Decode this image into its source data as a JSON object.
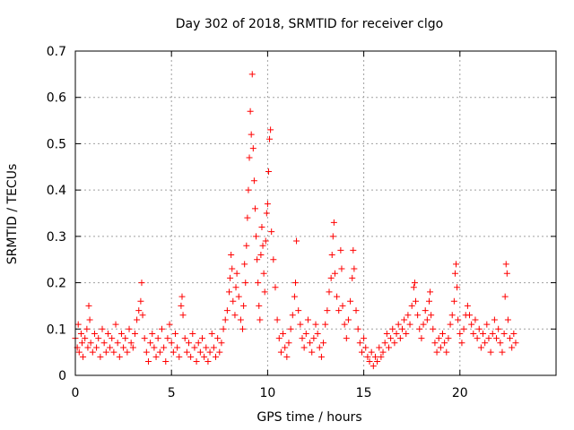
{
  "chart_data": {
    "type": "scatter",
    "title": "Day 302 of 2018, SRMTID for receiver clgo",
    "xlabel": "GPS time / hours",
    "ylabel": "SRMTID / TECUs",
    "xlim": [
      0,
      25
    ],
    "ylim": [
      0,
      0.7
    ],
    "x_ticks": [
      0,
      5,
      10,
      15,
      20
    ],
    "x_tick_labels": [
      "0",
      "5",
      "10",
      "15",
      "20"
    ],
    "y_ticks": [
      0,
      0.1,
      0.2,
      0.3,
      0.4,
      0.5,
      0.6,
      0.7
    ],
    "y_tick_labels": [
      "0",
      "0.1",
      "0.2",
      "0.3",
      "0.4",
      "0.5",
      "0.6",
      "0.7"
    ],
    "grid": true,
    "marker": "plus",
    "color": "#ff0000",
    "series": [
      {
        "name": "SRMTID",
        "points": [
          [
            0.0,
            0.08
          ],
          [
            0.1,
            0.06
          ],
          [
            0.15,
            0.11
          ],
          [
            0.2,
            0.05
          ],
          [
            0.3,
            0.09
          ],
          [
            0.35,
            0.07
          ],
          [
            0.4,
            0.04
          ],
          [
            0.5,
            0.08
          ],
          [
            0.6,
            0.1
          ],
          [
            0.65,
            0.06
          ],
          [
            0.7,
            0.15
          ],
          [
            0.75,
            0.12
          ],
          [
            0.8,
            0.07
          ],
          [
            0.9,
            0.05
          ],
          [
            1.0,
            0.09
          ],
          [
            1.1,
            0.06
          ],
          [
            1.2,
            0.08
          ],
          [
            1.3,
            0.04
          ],
          [
            1.4,
            0.1
          ],
          [
            1.5,
            0.07
          ],
          [
            1.6,
            0.05
          ],
          [
            1.7,
            0.09
          ],
          [
            1.8,
            0.06
          ],
          [
            1.9,
            0.08
          ],
          [
            2.0,
            0.05
          ],
          [
            2.1,
            0.11
          ],
          [
            2.2,
            0.07
          ],
          [
            2.3,
            0.04
          ],
          [
            2.4,
            0.09
          ],
          [
            2.5,
            0.06
          ],
          [
            2.6,
            0.08
          ],
          [
            2.7,
            0.05
          ],
          [
            2.8,
            0.1
          ],
          [
            2.9,
            0.07
          ],
          [
            3.0,
            0.06
          ],
          [
            3.1,
            0.09
          ],
          [
            3.2,
            0.12
          ],
          [
            3.3,
            0.14
          ],
          [
            3.4,
            0.16
          ],
          [
            3.45,
            0.2
          ],
          [
            3.5,
            0.13
          ],
          [
            3.6,
            0.08
          ],
          [
            3.7,
            0.05
          ],
          [
            3.8,
            0.03
          ],
          [
            3.9,
            0.07
          ],
          [
            4.0,
            0.09
          ],
          [
            4.1,
            0.06
          ],
          [
            4.2,
            0.04
          ],
          [
            4.3,
            0.08
          ],
          [
            4.4,
            0.05
          ],
          [
            4.5,
            0.1
          ],
          [
            4.6,
            0.06
          ],
          [
            4.7,
            0.03
          ],
          [
            4.8,
            0.08
          ],
          [
            4.9,
            0.11
          ],
          [
            5.0,
            0.07
          ],
          [
            5.1,
            0.05
          ],
          [
            5.2,
            0.09
          ],
          [
            5.3,
            0.06
          ],
          [
            5.4,
            0.04
          ],
          [
            5.5,
            0.15
          ],
          [
            5.55,
            0.17
          ],
          [
            5.6,
            0.13
          ],
          [
            5.7,
            0.08
          ],
          [
            5.8,
            0.05
          ],
          [
            5.9,
            0.07
          ],
          [
            6.0,
            0.04
          ],
          [
            6.1,
            0.09
          ],
          [
            6.2,
            0.06
          ],
          [
            6.3,
            0.03
          ],
          [
            6.4,
            0.07
          ],
          [
            6.5,
            0.05
          ],
          [
            6.6,
            0.08
          ],
          [
            6.7,
            0.04
          ],
          [
            6.8,
            0.06
          ],
          [
            6.9,
            0.03
          ],
          [
            7.0,
            0.05
          ],
          [
            7.1,
            0.09
          ],
          [
            7.2,
            0.06
          ],
          [
            7.3,
            0.04
          ],
          [
            7.4,
            0.08
          ],
          [
            7.5,
            0.05
          ],
          [
            7.6,
            0.07
          ],
          [
            7.7,
            0.1
          ],
          [
            7.8,
            0.12
          ],
          [
            7.9,
            0.14
          ],
          [
            8.0,
            0.18
          ],
          [
            8.05,
            0.21
          ],
          [
            8.1,
            0.26
          ],
          [
            8.15,
            0.23
          ],
          [
            8.2,
            0.16
          ],
          [
            8.3,
            0.13
          ],
          [
            8.35,
            0.19
          ],
          [
            8.4,
            0.22
          ],
          [
            8.5,
            0.17
          ],
          [
            8.6,
            0.12
          ],
          [
            8.7,
            0.1
          ],
          [
            8.75,
            0.15
          ],
          [
            8.8,
            0.24
          ],
          [
            8.85,
            0.2
          ],
          [
            8.9,
            0.28
          ],
          [
            8.95,
            0.34
          ],
          [
            9.0,
            0.4
          ],
          [
            9.05,
            0.47
          ],
          [
            9.1,
            0.57
          ],
          [
            9.15,
            0.52
          ],
          [
            9.2,
            0.65
          ],
          [
            9.25,
            0.49
          ],
          [
            9.3,
            0.42
          ],
          [
            9.35,
            0.36
          ],
          [
            9.4,
            0.3
          ],
          [
            9.45,
            0.25
          ],
          [
            9.5,
            0.2
          ],
          [
            9.55,
            0.15
          ],
          [
            9.6,
            0.12
          ],
          [
            9.65,
            0.26
          ],
          [
            9.7,
            0.32
          ],
          [
            9.75,
            0.28
          ],
          [
            9.8,
            0.22
          ],
          [
            9.85,
            0.18
          ],
          [
            9.9,
            0.29
          ],
          [
            9.95,
            0.35
          ],
          [
            10.0,
            0.37
          ],
          [
            10.05,
            0.44
          ],
          [
            10.1,
            0.51
          ],
          [
            10.15,
            0.53
          ],
          [
            10.2,
            0.31
          ],
          [
            10.3,
            0.25
          ],
          [
            10.4,
            0.19
          ],
          [
            10.5,
            0.12
          ],
          [
            10.6,
            0.08
          ],
          [
            10.7,
            0.05
          ],
          [
            10.8,
            0.09
          ],
          [
            10.9,
            0.06
          ],
          [
            11.0,
            0.04
          ],
          [
            11.1,
            0.07
          ],
          [
            11.2,
            0.1
          ],
          [
            11.3,
            0.13
          ],
          [
            11.4,
            0.17
          ],
          [
            11.45,
            0.2
          ],
          [
            11.5,
            0.29
          ],
          [
            11.6,
            0.14
          ],
          [
            11.7,
            0.11
          ],
          [
            11.8,
            0.08
          ],
          [
            11.9,
            0.06
          ],
          [
            12.0,
            0.09
          ],
          [
            12.1,
            0.12
          ],
          [
            12.2,
            0.07
          ],
          [
            12.3,
            0.05
          ],
          [
            12.4,
            0.08
          ],
          [
            12.5,
            0.11
          ],
          [
            12.6,
            0.09
          ],
          [
            12.7,
            0.06
          ],
          [
            12.8,
            0.04
          ],
          [
            12.9,
            0.07
          ],
          [
            13.0,
            0.11
          ],
          [
            13.1,
            0.14
          ],
          [
            13.2,
            0.18
          ],
          [
            13.3,
            0.21
          ],
          [
            13.35,
            0.26
          ],
          [
            13.4,
            0.3
          ],
          [
            13.45,
            0.33
          ],
          [
            13.5,
            0.22
          ],
          [
            13.6,
            0.17
          ],
          [
            13.7,
            0.14
          ],
          [
            13.8,
            0.27
          ],
          [
            13.85,
            0.23
          ],
          [
            13.9,
            0.15
          ],
          [
            14.0,
            0.11
          ],
          [
            14.1,
            0.08
          ],
          [
            14.2,
            0.12
          ],
          [
            14.3,
            0.16
          ],
          [
            14.4,
            0.21
          ],
          [
            14.45,
            0.27
          ],
          [
            14.5,
            0.23
          ],
          [
            14.6,
            0.14
          ],
          [
            14.7,
            0.1
          ],
          [
            14.8,
            0.07
          ],
          [
            14.9,
            0.05
          ],
          [
            15.0,
            0.08
          ],
          [
            15.1,
            0.06
          ],
          [
            15.2,
            0.04
          ],
          [
            15.3,
            0.03
          ],
          [
            15.4,
            0.05
          ],
          [
            15.5,
            0.02
          ],
          [
            15.6,
            0.04
          ],
          [
            15.7,
            0.03
          ],
          [
            15.8,
            0.06
          ],
          [
            15.9,
            0.04
          ],
          [
            16.0,
            0.05
          ],
          [
            16.1,
            0.07
          ],
          [
            16.2,
            0.09
          ],
          [
            16.3,
            0.06
          ],
          [
            16.4,
            0.08
          ],
          [
            16.5,
            0.1
          ],
          [
            16.6,
            0.07
          ],
          [
            16.7,
            0.09
          ],
          [
            16.8,
            0.11
          ],
          [
            16.9,
            0.08
          ],
          [
            17.0,
            0.1
          ],
          [
            17.1,
            0.12
          ],
          [
            17.2,
            0.09
          ],
          [
            17.3,
            0.13
          ],
          [
            17.4,
            0.11
          ],
          [
            17.5,
            0.15
          ],
          [
            17.6,
            0.19
          ],
          [
            17.65,
            0.2
          ],
          [
            17.7,
            0.16
          ],
          [
            17.8,
            0.13
          ],
          [
            17.9,
            0.1
          ],
          [
            18.0,
            0.08
          ],
          [
            18.1,
            0.11
          ],
          [
            18.2,
            0.14
          ],
          [
            18.3,
            0.12
          ],
          [
            18.4,
            0.16
          ],
          [
            18.45,
            0.18
          ],
          [
            18.5,
            0.13
          ],
          [
            18.6,
            0.1
          ],
          [
            18.7,
            0.07
          ],
          [
            18.8,
            0.05
          ],
          [
            18.9,
            0.08
          ],
          [
            19.0,
            0.06
          ],
          [
            19.1,
            0.09
          ],
          [
            19.2,
            0.07
          ],
          [
            19.3,
            0.05
          ],
          [
            19.4,
            0.08
          ],
          [
            19.5,
            0.11
          ],
          [
            19.6,
            0.13
          ],
          [
            19.7,
            0.16
          ],
          [
            19.75,
            0.22
          ],
          [
            19.8,
            0.24
          ],
          [
            19.85,
            0.19
          ],
          [
            19.9,
            0.12
          ],
          [
            20.0,
            0.09
          ],
          [
            20.1,
            0.07
          ],
          [
            20.2,
            0.1
          ],
          [
            20.3,
            0.13
          ],
          [
            20.4,
            0.15
          ],
          [
            20.5,
            0.13
          ],
          [
            20.6,
            0.11
          ],
          [
            20.7,
            0.09
          ],
          [
            20.8,
            0.12
          ],
          [
            20.9,
            0.08
          ],
          [
            21.0,
            0.1
          ],
          [
            21.1,
            0.06
          ],
          [
            21.2,
            0.09
          ],
          [
            21.3,
            0.07
          ],
          [
            21.4,
            0.11
          ],
          [
            21.5,
            0.08
          ],
          [
            21.6,
            0.05
          ],
          [
            21.7,
            0.09
          ],
          [
            21.8,
            0.12
          ],
          [
            21.9,
            0.08
          ],
          [
            22.0,
            0.1
          ],
          [
            22.1,
            0.07
          ],
          [
            22.2,
            0.05
          ],
          [
            22.3,
            0.09
          ],
          [
            22.35,
            0.17
          ],
          [
            22.4,
            0.24
          ],
          [
            22.45,
            0.22
          ],
          [
            22.5,
            0.12
          ],
          [
            22.6,
            0.08
          ],
          [
            22.7,
            0.06
          ],
          [
            22.8,
            0.09
          ],
          [
            22.9,
            0.07
          ]
        ]
      }
    ]
  }
}
